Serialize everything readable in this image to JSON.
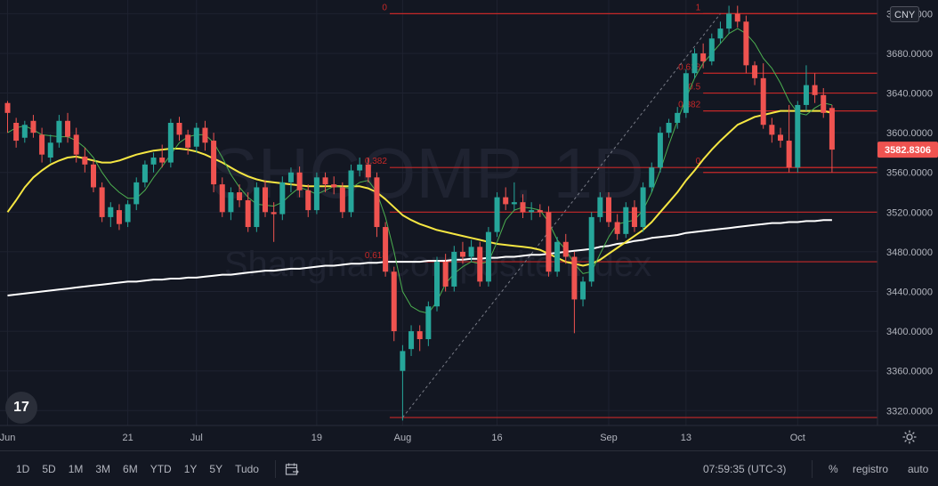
{
  "chart_data": {
    "type": "candlestick",
    "watermark": {
      "symbol": "SHCOMP, 1D",
      "name": "Shanghai Composite Index"
    },
    "currency": "CNY",
    "last_price": "3582.8306",
    "ylim": [
      3305,
      3732
    ],
    "y_ticks": [
      "3320.0000",
      "3360.0000",
      "3400.0000",
      "3440.0000",
      "3480.0000",
      "3520.0000",
      "3560.0000",
      "3600.0000",
      "3640.0000",
      "3680.0000",
      "3720.0000"
    ],
    "y_tick_values": [
      3320,
      3360,
      3400,
      3440,
      3480,
      3520,
      3560,
      3600,
      3640,
      3680,
      3720
    ],
    "x_ticks": [
      {
        "label": "Jun",
        "i": 0
      },
      {
        "label": "21",
        "i": 14
      },
      {
        "label": "Jul",
        "i": 22
      },
      {
        "label": "19",
        "i": 36
      },
      {
        "label": "Aug",
        "i": 46
      },
      {
        "label": "16",
        "i": 57
      },
      {
        "label": "Sep",
        "i": 70
      },
      {
        "label": "13",
        "i": 79
      },
      {
        "label": "Oct",
        "i": 92
      }
    ],
    "candles": [
      [
        3630,
        3620,
        3632,
        3600
      ],
      [
        3610,
        3592,
        3615,
        3585
      ],
      [
        3595,
        3608,
        3612,
        3590
      ],
      [
        3612,
        3600,
        3618,
        3595
      ],
      [
        3598,
        3578,
        3605,
        3570
      ],
      [
        3575,
        3590,
        3598,
        3570
      ],
      [
        3590,
        3612,
        3618,
        3585
      ],
      [
        3612,
        3596,
        3620,
        3590
      ],
      [
        3598,
        3578,
        3605,
        3570
      ],
      [
        3576,
        3568,
        3585,
        3560
      ],
      [
        3568,
        3545,
        3572,
        3540
      ],
      [
        3545,
        3515,
        3550,
        3510
      ],
      [
        3515,
        3525,
        3530,
        3505
      ],
      [
        3522,
        3508,
        3528,
        3502
      ],
      [
        3510,
        3528,
        3532,
        3505
      ],
      [
        3528,
        3550,
        3555,
        3522
      ],
      [
        3550,
        3568,
        3572,
        3545
      ],
      [
        3568,
        3575,
        3580,
        3560
      ],
      [
        3575,
        3570,
        3588,
        3565
      ],
      [
        3570,
        3610,
        3614,
        3565
      ],
      [
        3610,
        3598,
        3616,
        3592
      ],
      [
        3598,
        3585,
        3603,
        3578
      ],
      [
        3586,
        3605,
        3610,
        3580
      ],
      [
        3605,
        3590,
        3612,
        3582
      ],
      [
        3592,
        3548,
        3600,
        3540
      ],
      [
        3548,
        3520,
        3555,
        3515
      ],
      [
        3520,
        3540,
        3545,
        3512
      ],
      [
        3540,
        3532,
        3548,
        3525
      ],
      [
        3532,
        3505,
        3540,
        3500
      ],
      [
        3505,
        3545,
        3550,
        3500
      ],
      [
        3545,
        3520,
        3552,
        3515
      ],
      [
        3520,
        3518,
        3530,
        3490
      ],
      [
        3518,
        3550,
        3556,
        3512
      ],
      [
        3550,
        3560,
        3565,
        3540
      ],
      [
        3560,
        3542,
        3566,
        3535
      ],
      [
        3542,
        3522,
        3548,
        3515
      ],
      [
        3522,
        3555,
        3560,
        3518
      ],
      [
        3555,
        3548,
        3560,
        3540
      ],
      [
        3548,
        3545,
        3556,
        3538
      ],
      [
        3545,
        3520,
        3550,
        3514
      ],
      [
        3520,
        3562,
        3568,
        3515
      ],
      [
        3562,
        3568,
        3575,
        3556
      ],
      [
        3568,
        3555,
        3575,
        3550
      ],
      [
        3555,
        3505,
        3560,
        3495
      ],
      [
        3505,
        3460,
        3510,
        3455
      ],
      [
        3460,
        3400,
        3465,
        3390
      ],
      [
        3360,
        3380,
        3386,
        3310
      ],
      [
        3382,
        3400,
        3406,
        3375
      ],
      [
        3400,
        3392,
        3406,
        3380
      ],
      [
        3392,
        3425,
        3430,
        3385
      ],
      [
        3425,
        3470,
        3475,
        3420
      ],
      [
        3470,
        3445,
        3478,
        3440
      ],
      [
        3445,
        3480,
        3486,
        3440
      ],
      [
        3480,
        3475,
        3490,
        3468
      ],
      [
        3475,
        3485,
        3492,
        3470
      ],
      [
        3485,
        3450,
        3490,
        3445
      ],
      [
        3450,
        3500,
        3505,
        3445
      ],
      [
        3500,
        3535,
        3540,
        3495
      ],
      [
        3535,
        3528,
        3545,
        3522
      ],
      [
        3528,
        3530,
        3550,
        3522
      ],
      [
        3530,
        3520,
        3538,
        3514
      ],
      [
        3520,
        3522,
        3530,
        3512
      ],
      [
        3522,
        3520,
        3528,
        3515
      ],
      [
        3520,
        3460,
        3526,
        3455
      ],
      [
        3460,
        3490,
        3495,
        3455
      ],
      [
        3490,
        3475,
        3498,
        3468
      ],
      [
        3475,
        3432,
        3480,
        3398
      ],
      [
        3432,
        3450,
        3455,
        3425
      ],
      [
        3450,
        3515,
        3520,
        3445
      ],
      [
        3515,
        3535,
        3540,
        3510
      ],
      [
        3535,
        3510,
        3540,
        3505
      ],
      [
        3510,
        3498,
        3518,
        3492
      ],
      [
        3498,
        3525,
        3530,
        3494
      ],
      [
        3525,
        3505,
        3532,
        3500
      ],
      [
        3505,
        3545,
        3550,
        3500
      ],
      [
        3545,
        3565,
        3570,
        3540
      ],
      [
        3565,
        3600,
        3606,
        3560
      ],
      [
        3600,
        3610,
        3614,
        3595
      ],
      [
        3610,
        3620,
        3626,
        3604
      ],
      [
        3620,
        3660,
        3664,
        3615
      ],
      [
        3660,
        3680,
        3685,
        3655
      ],
      [
        3680,
        3672,
        3690,
        3665
      ],
      [
        3672,
        3695,
        3700,
        3668
      ],
      [
        3695,
        3705,
        3712,
        3690
      ],
      [
        3705,
        3720,
        3728,
        3700
      ],
      [
        3720,
        3712,
        3728,
        3706
      ],
      [
        3712,
        3668,
        3718,
        3660
      ],
      [
        3668,
        3655,
        3672,
        3648
      ],
      [
        3655,
        3608,
        3670,
        3604
      ],
      [
        3608,
        3598,
        3615,
        3590
      ],
      [
        3598,
        3592,
        3605,
        3585
      ],
      [
        3592,
        3565,
        3628,
        3560
      ],
      [
        3565,
        3628,
        3632,
        3560
      ],
      [
        3628,
        3648,
        3668,
        3622
      ],
      [
        3648,
        3638,
        3660,
        3630
      ],
      [
        3638,
        3620,
        3645,
        3615
      ],
      [
        3625,
        3583,
        3628,
        3560
      ]
    ],
    "ma_fast": [
      3600,
      3605,
      3607,
      3603,
      3598,
      3597,
      3596,
      3596,
      3592,
      3585,
      3575,
      3560,
      3548,
      3540,
      3534,
      3534,
      3542,
      3555,
      3566,
      3578,
      3590,
      3596,
      3598,
      3598,
      3590,
      3575,
      3558,
      3545,
      3535,
      3528,
      3527,
      3526,
      3530,
      3538,
      3545,
      3542,
      3538,
      3542,
      3546,
      3545,
      3544,
      3550,
      3552,
      3540,
      3515,
      3480,
      3440,
      3425,
      3420,
      3418,
      3430,
      3448,
      3458,
      3465,
      3470,
      3468,
      3470,
      3490,
      3512,
      3522,
      3525,
      3524,
      3522,
      3510,
      3492,
      3482,
      3468,
      3458,
      3460,
      3478,
      3495,
      3508,
      3510,
      3512,
      3522,
      3540,
      3562,
      3588,
      3612,
      3635,
      3655,
      3670,
      3680,
      3690,
      3700,
      3705,
      3700,
      3690,
      3675,
      3665,
      3650,
      3632,
      3620,
      3618,
      3625,
      3630,
      3628
    ],
    "ma_mid": [
      3520,
      3532,
      3545,
      3555,
      3562,
      3568,
      3572,
      3575,
      3576,
      3574,
      3572,
      3570,
      3570,
      3572,
      3575,
      3578,
      3580,
      3582,
      3583,
      3584,
      3584,
      3583,
      3581,
      3578,
      3574,
      3570,
      3565,
      3560,
      3556,
      3553,
      3551,
      3550,
      3549,
      3548,
      3547,
      3546,
      3546,
      3546,
      3546,
      3546,
      3546,
      3546,
      3544,
      3540,
      3533,
      3525,
      3517,
      3512,
      3508,
      3505,
      3502,
      3500,
      3498,
      3496,
      3494,
      3492,
      3490,
      3488,
      3487,
      3486,
      3485,
      3484,
      3482,
      3478,
      3474,
      3470,
      3468,
      3466,
      3468,
      3472,
      3478,
      3484,
      3490,
      3496,
      3502,
      3510,
      3520,
      3530,
      3540,
      3552,
      3562,
      3573,
      3583,
      3592,
      3600,
      3608,
      3612,
      3616,
      3618,
      3620,
      3622,
      3622,
      3622,
      3622,
      3622,
      3622,
      3620
    ],
    "ma_slow": [
      3436,
      3437,
      3438,
      3439,
      3440,
      3441,
      3442,
      3443,
      3444,
      3445,
      3446,
      3447,
      3448,
      3449,
      3450,
      3450,
      3451,
      3452,
      3452,
      3453,
      3453,
      3454,
      3454,
      3455,
      3456,
      3457,
      3457,
      3458,
      3459,
      3460,
      3461,
      3461,
      3462,
      3463,
      3463,
      3464,
      3465,
      3466,
      3466,
      3467,
      3468,
      3468,
      3469,
      3469,
      3470,
      3470,
      3470,
      3470,
      3470,
      3471,
      3471,
      3471,
      3472,
      3472,
      3473,
      3473,
      3474,
      3474,
      3475,
      3475,
      3476,
      3477,
      3477,
      3478,
      3479,
      3480,
      3481,
      3482,
      3483,
      3485,
      3486,
      3488,
      3489,
      3491,
      3492,
      3494,
      3495,
      3496,
      3497,
      3499,
      3500,
      3501,
      3502,
      3503,
      3504,
      3505,
      3506,
      3507,
      3508,
      3509,
      3509,
      3510,
      3510,
      3511,
      3511,
      3512,
      3512
    ],
    "fib_left": {
      "levels": [
        {
          "label": "0",
          "value": 3720
        },
        {
          "label": "0.382",
          "value": 3565
        },
        {
          "label": "0.618",
          "value": 3470
        }
      ],
      "bottom": 3313
    },
    "fib_left_lines": [
      3720,
      3565,
      3520,
      3470,
      3313
    ],
    "fib_right": {
      "levels": [
        {
          "label": "1",
          "value": 3720
        },
        {
          "label": "0.618",
          "value": 3660
        },
        {
          "label": "0.5",
          "value": 3640
        },
        {
          "label": "0.382",
          "value": 3622
        },
        {
          "label": "0",
          "value": 3565
        }
      ]
    },
    "fib_right_extra": [
      3560
    ],
    "trend_from": {
      "i": 46,
      "value": 3313
    },
    "trend_to": {
      "i": 83,
      "value": 3720
    },
    "colors": {
      "up": "#26a69a",
      "down": "#ef5350",
      "ma_fast": "#4caf50",
      "ma_mid": "#f5e642",
      "ma_slow": "#ffffff",
      "fib": "#c62828",
      "grid": "#1e2230",
      "bg": "#131722",
      "price_label": "#ef5350"
    }
  },
  "toolbar": {
    "periods": [
      "1D",
      "5D",
      "1M",
      "3M",
      "6M",
      "YTD",
      "1Y",
      "5Y",
      "Tudo"
    ],
    "time": "07:59:35 (UTC-3)",
    "percent": "%",
    "log": "registro",
    "auto": "auto"
  },
  "logo": "17"
}
